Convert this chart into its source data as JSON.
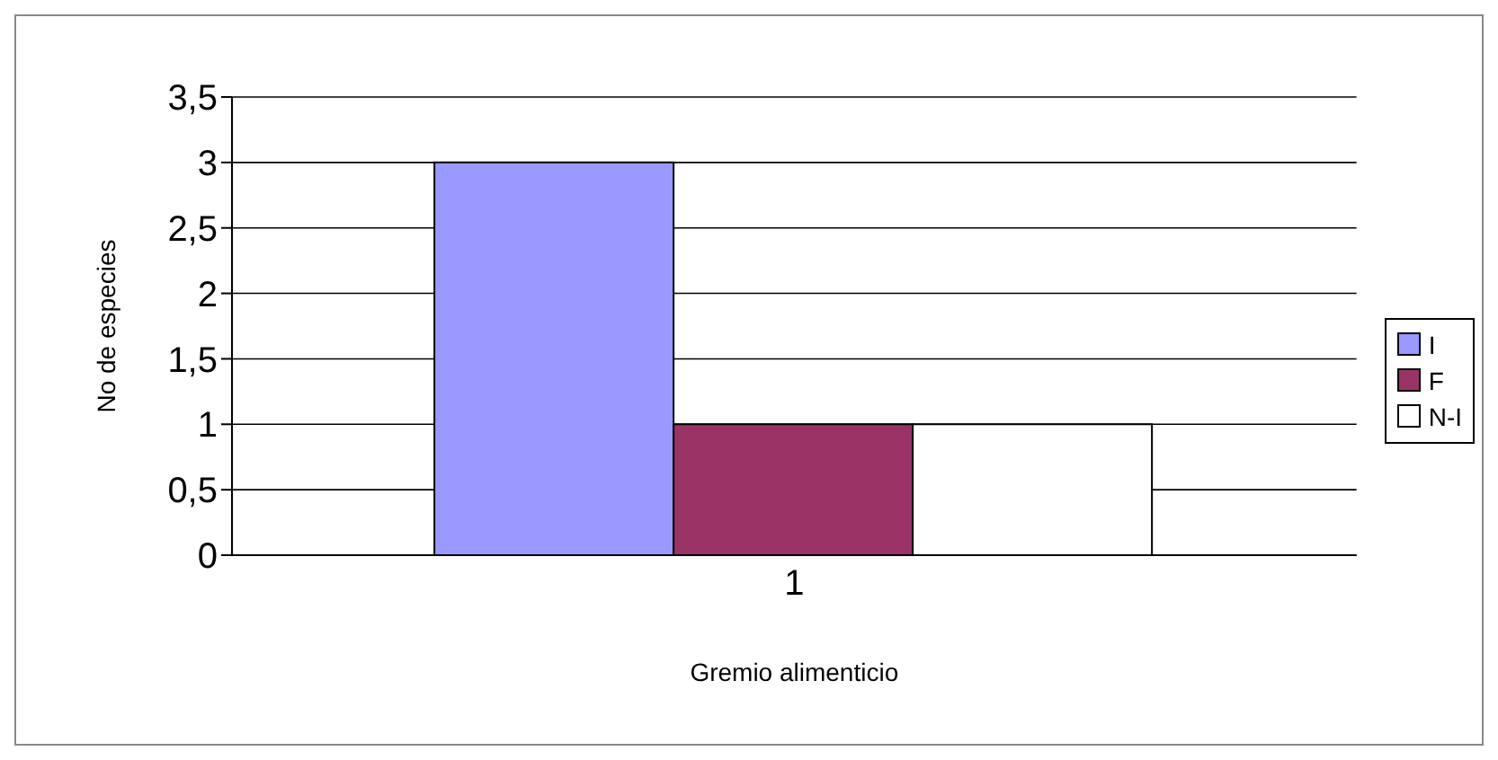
{
  "chart_data": {
    "type": "bar",
    "xlabel": "Gremio alimenticio",
    "ylabel": "No de especies",
    "categories": [
      "1"
    ],
    "series": [
      {
        "name": "I",
        "color": "#9999ff",
        "values": [
          3
        ]
      },
      {
        "name": "F",
        "color": "#993366",
        "values": [
          1
        ]
      },
      {
        "name": "N-I",
        "color": "#ffffff",
        "values": [
          1
        ]
      }
    ],
    "ylim": [
      0,
      3.5
    ],
    "yticks": [
      0,
      {
        "value": 0.5,
        "label": "0,5"
      },
      1,
      {
        "value": 1.5,
        "label": "1,5"
      },
      2,
      {
        "value": 2.5,
        "label": "2,5"
      },
      3,
      {
        "value": 3.5,
        "label": "3,5"
      }
    ],
    "grid": "y",
    "legend": "right"
  }
}
